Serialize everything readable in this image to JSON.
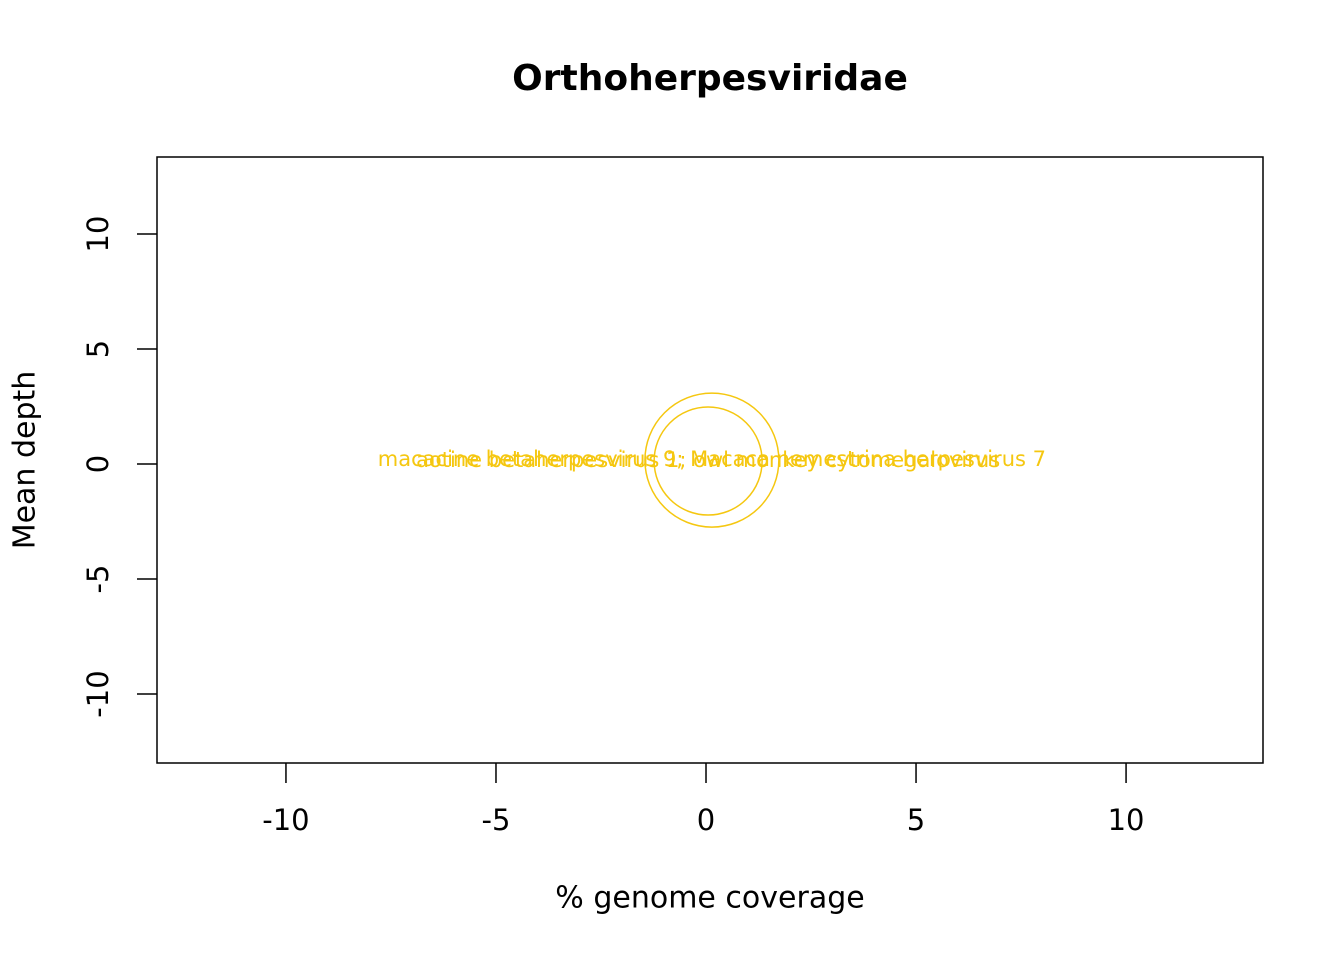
{
  "chart_data": {
    "type": "scatter",
    "title": "Orthoherpesviridae",
    "x_label": "% genome coverage",
    "y_label": "Mean depth",
    "x": [
      0.14,
      0.05
    ],
    "y": [
      0.17,
      0.13
    ],
    "sizes": [
      1.24,
      1
    ],
    "labels": [
      "macacine betaherpesvirus 9; Macaca nemestrina herpesvirus 7",
      "aotine betaherpesvirus 1; owl monkey cytomegalovirus"
    ],
    "color": "#f5c710",
    "xlim": [
      -13.07,
      13.26
    ],
    "ylim": [
      -13.0,
      13.35
    ],
    "xticks": [
      -10,
      -5,
      0,
      5,
      10
    ],
    "yticks": [
      -10,
      -5,
      0,
      5,
      10
    ]
  }
}
